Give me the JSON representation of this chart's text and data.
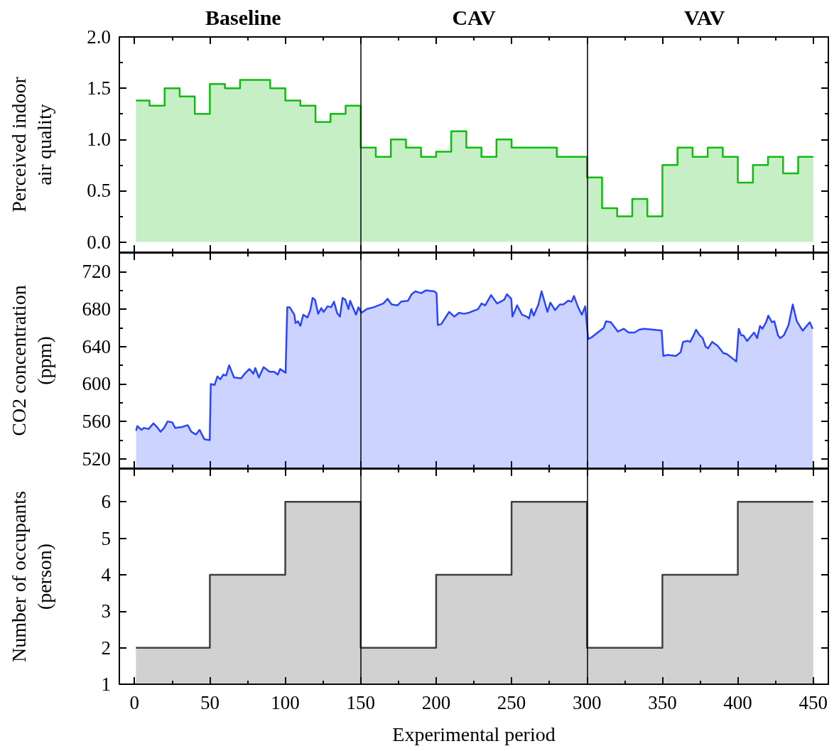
{
  "chart_data": [
    {
      "type": "area",
      "ylabel": "Perceived indoor\nair quality",
      "tick_labels": "y",
      "annotations": [
        "Baseline",
        "CAV",
        "VAV"
      ],
      "xlim": [
        -10,
        460
      ],
      "xticks": [
        0,
        {
          "value": 25,
          "label": null
        },
        50,
        {
          "value": 75,
          "label": null
        },
        100,
        {
          "value": 125,
          "label": null
        },
        150,
        {
          "value": 175,
          "label": null
        },
        200,
        {
          "value": 225,
          "label": null
        },
        250,
        {
          "value": 275,
          "label": null
        },
        300,
        {
          "value": 325,
          "label": null
        },
        350,
        {
          "value": 375,
          "label": null
        },
        400,
        {
          "value": 425,
          "label": null
        },
        450
      ],
      "ylim": [
        -0.1,
        2.0
      ],
      "yticks": [
        {
          "value": 0,
          "label": "0.0"
        },
        {
          "value": 0.25,
          "label": null
        },
        {
          "value": 0.5,
          "label": "0.5"
        },
        {
          "value": 0.75,
          "label": null
        },
        {
          "value": 1,
          "label": "1.0"
        },
        {
          "value": 1.25,
          "label": null
        },
        {
          "value": 1.5,
          "label": "1.5"
        },
        {
          "value": 1.75,
          "label": null
        },
        {
          "value": 2,
          "label": "2.0"
        }
      ],
      "ref_lines": [
        {
          "axis": "x",
          "value": 150,
          "color": "#000000"
        },
        {
          "axis": "x",
          "value": 300,
          "color": "#000000"
        }
      ],
      "series": [
        {
          "color": "#11bb11",
          "x": [
            1,
            10,
            10,
            20,
            20,
            30,
            30,
            40,
            40,
            50,
            50,
            60,
            60,
            70,
            70,
            80,
            80,
            90,
            90,
            100,
            100,
            110,
            110,
            120,
            120,
            130,
            130,
            140,
            140,
            150,
            150,
            160,
            160,
            170,
            170,
            180,
            180,
            190,
            190,
            200,
            200,
            210,
            210,
            220,
            220,
            230,
            230,
            240,
            240,
            250,
            250,
            260,
            260,
            270,
            270,
            280,
            280,
            290,
            290,
            300,
            300,
            310,
            310,
            320,
            320,
            330,
            330,
            340,
            340,
            350,
            350,
            360,
            360,
            370,
            370,
            380,
            380,
            390,
            390,
            400,
            400,
            410,
            410,
            420,
            420,
            430,
            430,
            440,
            440,
            450
          ],
          "values": [
            1.38,
            1.38,
            1.33,
            1.33,
            1.5,
            1.5,
            1.42,
            1.42,
            1.25,
            1.25,
            1.54,
            1.54,
            1.5,
            1.5,
            1.58,
            1.58,
            1.58,
            1.58,
            1.5,
            1.5,
            1.38,
            1.38,
            1.33,
            1.33,
            1.17,
            1.17,
            1.25,
            1.25,
            1.33,
            1.33,
            0.92,
            0.92,
            0.83,
            0.83,
            1.0,
            1.0,
            0.92,
            0.92,
            0.83,
            0.83,
            0.88,
            0.88,
            1.08,
            1.08,
            0.92,
            0.92,
            0.83,
            0.83,
            1.0,
            1.0,
            0.92,
            0.92,
            0.92,
            0.92,
            0.92,
            0.92,
            0.83,
            0.83,
            0.83,
            0.83,
            0.63,
            0.63,
            0.33,
            0.33,
            0.25,
            0.25,
            0.42,
            0.42,
            0.25,
            0.25,
            0.75,
            0.75,
            0.92,
            0.92,
            0.83,
            0.83,
            0.92,
            0.92,
            0.83,
            0.83,
            0.58,
            0.58,
            0.75,
            0.75,
            0.83,
            0.83,
            0.67,
            0.67,
            0.83,
            0.83
          ]
        }
      ]
    },
    {
      "type": "area",
      "ylabel": "CO2 concentration\n(ppm)",
      "tick_labels": "y",
      "xlim": [
        -10,
        460
      ],
      "xticks": [
        0,
        {
          "value": 25,
          "label": null
        },
        50,
        {
          "value": 75,
          "label": null
        },
        100,
        {
          "value": 125,
          "label": null
        },
        150,
        {
          "value": 175,
          "label": null
        },
        200,
        {
          "value": 225,
          "label": null
        },
        250,
        {
          "value": 275,
          "label": null
        },
        300,
        {
          "value": 325,
          "label": null
        },
        350,
        {
          "value": 375,
          "label": null
        },
        400,
        {
          "value": 425,
          "label": null
        },
        450
      ],
      "ylim": [
        510,
        740
      ],
      "yticks": [
        520,
        {
          "value": 540,
          "label": null
        },
        560,
        {
          "value": 580,
          "label": null
        },
        600,
        {
          "value": 620,
          "label": null
        },
        640,
        {
          "value": 660,
          "label": null
        },
        680,
        {
          "value": 700,
          "label": null
        },
        720
      ],
      "ref_lines": [
        {
          "axis": "x",
          "value": 150,
          "color": "#000000"
        },
        {
          "axis": "x",
          "value": 300,
          "color": "#000000"
        }
      ],
      "series": [
        {
          "color": "#2a45ff",
          "x": [
            1.1,
            1.9,
            4.7,
            6.3,
            9.4,
            12.6,
            15,
            17.3,
            19.6,
            22,
            25.1,
            27,
            31.4,
            35.3,
            37.7,
            40.8,
            43.2,
            46.3,
            49.9,
            50.6,
            53.1,
            55,
            56.9,
            58.9,
            60.8,
            62.8,
            66,
            70.7,
            73.1,
            76.2,
            78.9,
            80.1,
            82.5,
            85.6,
            89.6,
            92.7,
            95,
            96.6,
            100.2,
            101.3,
            102.9,
            106,
            106.8,
            108.4,
            110,
            111.9,
            114.7,
            116.6,
            118.1,
            119.7,
            121.8,
            123.8,
            125.4,
            128,
            130.4,
            132.3,
            134.3,
            136.2,
            138,
            139.8,
            141.9,
            143,
            144.5,
            146.9,
            148.5,
            150.5,
            154,
            158.7,
            165,
            167.8,
            170.5,
            174.4,
            176.8,
            181.4,
            183.8,
            186.2,
            190.1,
            193.2,
            198.7,
            200.3,
            201.1,
            203.4,
            208.6,
            212.1,
            215.2,
            218.4,
            221.5,
            224.6,
            227.8,
            230.1,
            232.5,
            236.4,
            240.4,
            245.1,
            247,
            249.8,
            250.6,
            253.7,
            256.9,
            260,
            261.6,
            263.1,
            264.7,
            267.8,
            269.9,
            273.8,
            275.7,
            278.8,
            282,
            284.3,
            287.5,
            289.8,
            291.4,
            294.1,
            296.6,
            298.8,
            300.8,
            303.2,
            307.1,
            311.1,
            312.6,
            315.8,
            320.5,
            324.4,
            327.6,
            331.5,
            334.6,
            337.8,
            344,
            349.5,
            350.6,
            353.5,
            359,
            362.1,
            363.7,
            366.8,
            368.4,
            370.7,
            372.3,
            374.7,
            376.7,
            378.6,
            380.2,
            383,
            386.5,
            390.4,
            392.7,
            396.7,
            399,
            400.6,
            402.2,
            403.7,
            406.1,
            409.2,
            410.8,
            412.8,
            414.7,
            416.3,
            418.7,
            420.2,
            422.6,
            424.2,
            426.6,
            428.1,
            430.5,
            433.6,
            436.4,
            439.1,
            441.4,
            443,
            444.6,
            447.7,
            449.6
          ],
          "values": [
            550,
            555,
            551,
            553,
            552,
            558,
            554,
            549,
            553,
            560,
            559,
            553,
            554,
            556,
            549,
            546,
            551,
            541,
            540,
            600,
            599,
            608,
            605,
            610,
            609,
            620,
            607,
            606,
            611,
            616,
            611,
            617,
            607,
            618,
            613,
            613,
            610,
            616,
            612,
            682,
            682,
            674,
            665,
            667,
            662,
            674,
            671,
            679,
            692,
            690,
            675,
            681,
            677,
            683,
            682,
            688,
            676,
            672,
            692,
            690,
            680,
            689,
            683,
            674,
            682,
            676,
            680,
            682,
            686,
            691,
            685,
            684,
            688,
            689,
            696,
            699,
            697,
            700,
            699,
            697,
            663,
            664,
            677,
            672,
            676,
            675,
            676,
            678,
            680,
            686,
            684,
            695,
            686,
            690,
            696,
            691,
            672,
            684,
            674,
            672,
            670,
            680,
            673,
            685,
            699,
            677,
            687,
            679,
            685,
            685,
            689,
            688,
            694,
            682,
            674,
            683,
            648,
            650,
            655,
            660,
            667,
            666,
            656,
            659,
            655,
            655,
            658,
            659,
            658,
            657,
            630,
            631,
            630,
            634,
            645,
            646,
            645,
            652,
            658,
            652,
            649,
            640,
            638,
            645,
            641,
            633,
            632,
            627,
            624,
            659,
            652,
            652,
            646,
            652,
            655,
            649,
            662,
            659,
            666,
            673,
            666,
            667,
            652,
            649,
            652,
            663,
            685,
            667,
            661,
            657,
            660,
            666,
            659
          ]
        }
      ]
    },
    {
      "type": "area",
      "xlabel": "Experimental period",
      "ylabel": "Number of occupants\n(person)",
      "xlim": [
        -10,
        460
      ],
      "xticks": [
        0,
        {
          "value": 25,
          "label": null
        },
        50,
        {
          "value": 75,
          "label": null
        },
        100,
        {
          "value": 125,
          "label": null
        },
        150,
        {
          "value": 175,
          "label": null
        },
        200,
        {
          "value": 225,
          "label": null
        },
        250,
        {
          "value": 275,
          "label": null
        },
        300,
        {
          "value": 325,
          "label": null
        },
        350,
        {
          "value": 375,
          "label": null
        },
        400,
        {
          "value": 425,
          "label": null
        },
        450
      ],
      "ylim": [
        1,
        6.9
      ],
      "yticks": [
        1,
        2,
        3,
        4,
        5,
        6
      ],
      "ref_lines": [
        {
          "axis": "x",
          "value": 150,
          "color": "#000000"
        },
        {
          "axis": "x",
          "value": 300,
          "color": "#000000"
        }
      ],
      "series": [
        {
          "color": "#404040",
          "x": [
            1,
            50,
            50,
            100,
            100,
            150,
            150,
            200,
            200,
            250,
            250,
            300,
            300,
            350,
            350,
            400,
            400,
            450
          ],
          "values": [
            2,
            2,
            4,
            4,
            6,
            6,
            2,
            2,
            4,
            4,
            6,
            6,
            2,
            2,
            4,
            4,
            6,
            6
          ]
        }
      ]
    }
  ]
}
